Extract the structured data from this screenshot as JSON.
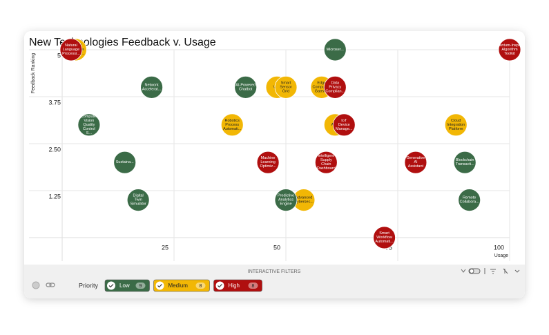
{
  "chart_data": {
    "type": "scatter",
    "title": "New Technologies Feedback v. Usage",
    "x_label": "Usage",
    "y_label": "Feedback Ranking",
    "xlim": [
      0,
      100
    ],
    "xticks": [
      25,
      50,
      75,
      100
    ],
    "ylim": [
      0,
      5
    ],
    "yticks": [
      {
        "value": 1.25,
        "label": "1.25"
      },
      {
        "value": 2.5,
        "label": "2.50"
      },
      {
        "value": 3.75,
        "label": "3.75"
      },
      5
    ],
    "grid": true,
    "series": [
      {
        "name": "Medium",
        "color": "#f2b705",
        "labels": [
          "Natural Language Processi...",
          "Ve...",
          "Smart Sensor Grid",
          "Edge Computing Gatew...",
          "Robotics Process Automati...",
          "Au...",
          "Cloud Integration Platform",
          "Advanced Cybersec..."
        ],
        "x": [
          3,
          48,
          50,
          58,
          38,
          61,
          88,
          54
        ],
        "values": [
          5,
          4,
          4,
          4,
          3,
          3,
          3,
          1
        ]
      },
      {
        "name": "High",
        "color": "#b00f0f",
        "labels": [
          "Natural Language Processi...",
          "Quantum-Inspired Algorithm Toolkit",
          "Data Privacy Complian...",
          "IoT Device Manage...",
          "Machine Learning Optimiz...",
          "Intelligent Supply Chain Dashboard",
          "Generative AI Assistant",
          "Smart Workflow Automati..."
        ],
        "x": [
          2,
          100,
          61,
          63,
          46,
          59,
          79,
          72
        ],
        "values": [
          5,
          5,
          4,
          3,
          2,
          2,
          2,
          0
        ]
      },
      {
        "name": "Low",
        "color": "#3b6b47",
        "labels": [
          "Microser...",
          "Network Accelerat...",
          "AI-Powered Chatbot",
          "Computer Vision Quality Control S...",
          "Sustaina...",
          "Blockchain Transacti...",
          "Digital Twin Simulator",
          "Predictive Analytics Engine",
          "Remote Collabora..."
        ],
        "x": [
          61,
          20,
          41,
          6,
          14,
          90,
          17,
          50,
          91
        ],
        "values": [
          5,
          4,
          4,
          3,
          2,
          2,
          1,
          1,
          1
        ]
      }
    ]
  },
  "filters": {
    "title": "INTERACTIVE FILTERS",
    "label": "Priority",
    "chips": [
      {
        "series": 2,
        "count": 9
      },
      {
        "series": 0,
        "count": 8
      },
      {
        "series": 1,
        "count": 8
      }
    ]
  }
}
